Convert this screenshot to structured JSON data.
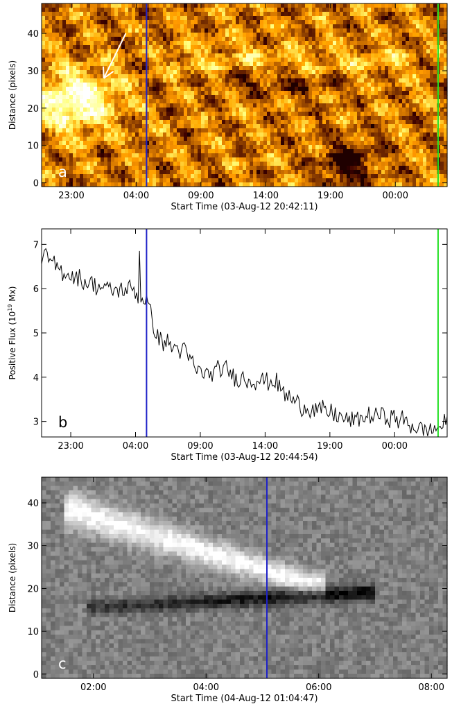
{
  "chart_data": [
    {
      "type": "heatmap",
      "panel_label": "a",
      "colormap": "sdo-aia-gold",
      "xlabel": "Start Time (03-Aug-12 20:42:11)",
      "ylabel": "Distance (pixels)",
      "x_start_hours": 0,
      "x_end_hours": 31.3,
      "xticks": [
        {
          "label": "23:00",
          "hours": 2.3
        },
        {
          "label": "04:00",
          "hours": 7.3
        },
        {
          "label": "09:00",
          "hours": 12.3
        },
        {
          "label": "14:00",
          "hours": 17.3
        },
        {
          "label": "19:00",
          "hours": 22.3
        },
        {
          "label": "00:00",
          "hours": 27.3
        }
      ],
      "ylim": [
        -1,
        48
      ],
      "yticks": [
        0,
        10,
        20,
        30,
        40
      ],
      "vlines": [
        {
          "hours": 8.1,
          "color": "#1f22c8"
        },
        {
          "hours": 30.6,
          "color": "#22e022"
        }
      ],
      "arrow": {
        "tail": [
          6.5,
          40
        ],
        "head": [
          4.8,
          28
        ],
        "color": "#ffffff"
      },
      "features": [
        {
          "name": "bright",
          "hours": 2.5,
          "distance": 22,
          "intensity": 1.0
        },
        {
          "name": "dark",
          "hours": 23.5,
          "distance": 5,
          "intensity": -0.9
        }
      ]
    },
    {
      "type": "line",
      "panel_label": "b",
      "xlabel": "Start Time (03-Aug-12 20:44:54)",
      "ylabel": "Positive Flux (10",
      "ylabel_exp": "19",
      "ylabel_unit": " Mx)",
      "x_start_hours": 0,
      "x_end_hours": 31.3,
      "xticks": [
        {
          "label": "23:00",
          "hours": 2.25
        },
        {
          "label": "04:00",
          "hours": 7.25
        },
        {
          "label": "09:00",
          "hours": 12.25
        },
        {
          "label": "14:00",
          "hours": 17.25
        },
        {
          "label": "19:00",
          "hours": 22.25
        },
        {
          "label": "00:00",
          "hours": 27.25
        }
      ],
      "ylim": [
        2.65,
        7.35
      ],
      "yticks": [
        3,
        4,
        5,
        6,
        7
      ],
      "vlines": [
        {
          "hours": 8.1,
          "color": "#1f22c8"
        },
        {
          "hours": 30.6,
          "color": "#22e022"
        }
      ],
      "series": [
        {
          "x": [
            0,
            1,
            2,
            3,
            4,
            5,
            6,
            7,
            7.6,
            8.1,
            8.6,
            9,
            10,
            11,
            12,
            13,
            14,
            15,
            16,
            17,
            18,
            19,
            20,
            21,
            22,
            23,
            24,
            25,
            26,
            27,
            28,
            29,
            30,
            31.3
          ],
          "values": [
            6.8,
            6.5,
            6.35,
            6.2,
            6.1,
            6.0,
            5.95,
            6.0,
            5.8,
            5.75,
            5.2,
            4.9,
            4.7,
            4.6,
            4.15,
            4.05,
            4.2,
            4.0,
            3.95,
            3.95,
            3.9,
            3.55,
            3.35,
            3.3,
            3.2,
            3.1,
            3.0,
            3.1,
            3.15,
            3.1,
            3.0,
            2.85,
            2.8,
            2.95
          ],
          "noise_amplitude": 0.18,
          "color": "#000000"
        }
      ]
    },
    {
      "type": "heatmap",
      "panel_label": "c",
      "colormap": "gray",
      "xlabel": "Start Time (04-Aug-12 01:04:47)",
      "ylabel": "Distance (pixels)",
      "x_start_hours": 0,
      "x_end_hours": 7.2,
      "xticks": [
        {
          "label": "02:00",
          "hours": 0.92
        },
        {
          "label": "04:00",
          "hours": 2.92
        },
        {
          "label": "06:00",
          "hours": 4.92
        },
        {
          "label": "08:00",
          "hours": 6.92
        }
      ],
      "ylim": [
        -1,
        46
      ],
      "yticks": [
        0,
        10,
        20,
        30,
        40
      ],
      "vlines": [
        {
          "hours": 4.0,
          "color": "#1f22c8"
        }
      ],
      "features": [
        {
          "name": "bright-streak",
          "from": [
            0.6,
            38
          ],
          "to": [
            4.8,
            21
          ],
          "intensity": 1.0
        },
        {
          "name": "dark-streak",
          "from": [
            1.0,
            15.5
          ],
          "to": [
            5.7,
            19
          ],
          "intensity": -1.0
        }
      ]
    }
  ]
}
